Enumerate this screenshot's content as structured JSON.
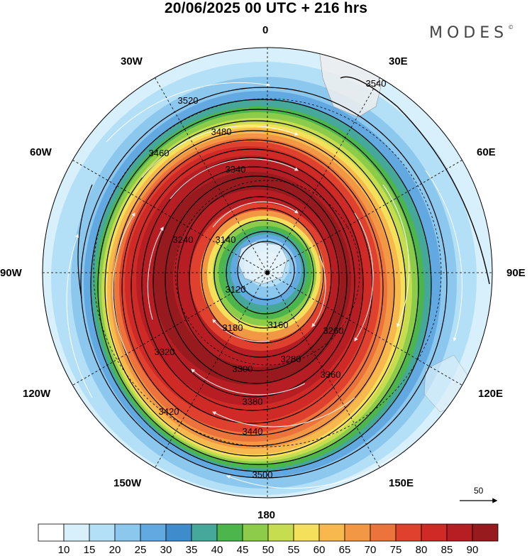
{
  "title": "20/06/2025  00 UTC  + 216 hrs",
  "brand": {
    "text": "MODES",
    "mark": "©"
  },
  "map": {
    "projection": "south-polar-stereographic",
    "longitude_labels": [
      "0",
      "30E",
      "60E",
      "90E",
      "120E",
      "150E",
      "180",
      "150W",
      "120W",
      "90W",
      "60W",
      "30W"
    ],
    "contour_labels": [
      "3120",
      "3140",
      "3160",
      "3180",
      "3240",
      "3260",
      "3280",
      "3300",
      "3320",
      "3340",
      "3360",
      "3380",
      "3420",
      "3440",
      "3460",
      "3480",
      "3500",
      "3520",
      "3540"
    ],
    "shading_variable": "wind speed",
    "streamlines": "white wind arrows"
  },
  "colorbar": {
    "ticks": [
      "10",
      "15",
      "20",
      "25",
      "30",
      "35",
      "40",
      "45",
      "50",
      "55",
      "60",
      "65",
      "70",
      "75",
      "80",
      "85",
      "90"
    ],
    "colors": [
      "#ffffff",
      "#d7f0fb",
      "#b3e0f6",
      "#8cc7ee",
      "#62a9e1",
      "#3f8ccc",
      "#45a89a",
      "#4cb54b",
      "#8ccc4a",
      "#c6dd4f",
      "#f4e05a",
      "#f7b94d",
      "#f29844",
      "#ec733b",
      "#e0412e",
      "#cf2a26",
      "#b61e24",
      "#961a1e"
    ]
  },
  "vector_reference": {
    "label": "50"
  }
}
